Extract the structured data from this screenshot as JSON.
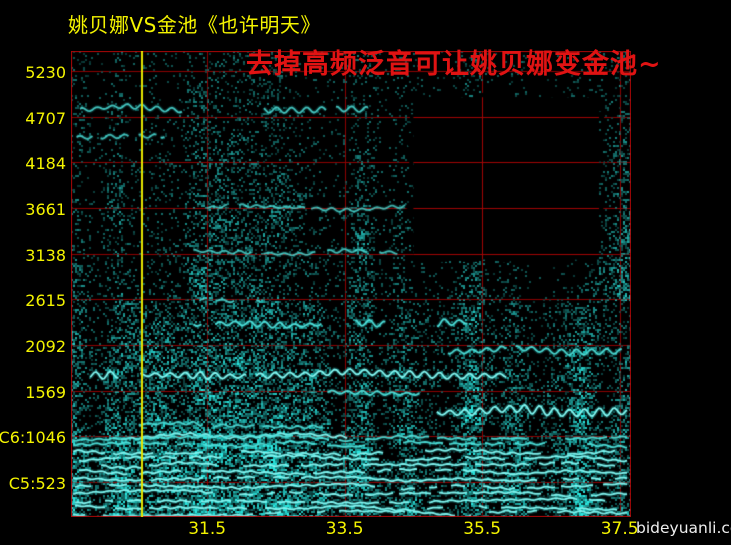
{
  "header": {
    "title": "姚贝娜VS金池《也许明天》",
    "title_color": "#f4f400",
    "annotation": "去掉高频泛音可让姚贝娜变金池~",
    "annotation_color": "#e01313"
  },
  "footer": {
    "watermark": "bideyuanli.com",
    "watermark_color": "#eeeeee"
  },
  "chart_data": {
    "type": "heatmap",
    "subtype": "audio-spectrogram",
    "title": "姚贝娜VS金池《也许明天》",
    "annotation": "去掉高频泛音可让姚贝娜变金池~",
    "x_unit": "seconds",
    "y_unit": "Hz",
    "x_range": [
      29.52,
      37.665
    ],
    "y_range": [
      120,
      5460
    ],
    "x_ticks": [
      {
        "label": "31.5",
        "value": 31.5
      },
      {
        "label": "33.5",
        "value": 33.5
      },
      {
        "label": "35.5",
        "value": 35.5
      },
      {
        "label": "37.5",
        "value": 37.5
      }
    ],
    "y_ticks": [
      {
        "label": "5230",
        "value": 5230
      },
      {
        "label": "4707",
        "value": 4707
      },
      {
        "label": "4184",
        "value": 4184
      },
      {
        "label": "3661",
        "value": 3661
      },
      {
        "label": "3138",
        "value": 3138
      },
      {
        "label": "2615",
        "value": 2615
      },
      {
        "label": "2092",
        "value": 2092
      },
      {
        "label": "1569",
        "value": 1569
      },
      {
        "label": "C6:1046",
        "value": 1046
      },
      {
        "label": "C5:523",
        "value": 523
      }
    ],
    "grid": true,
    "tick_color": "#f4f400",
    "grid_color": "#8f0303",
    "grid_color_in_erased": "#a30505",
    "border_color": "#ad0707",
    "cursor_time": 30.55,
    "cursor_color": "#e6e600",
    "erased_region": {
      "t0": 34.5,
      "t1": 37.2,
      "f0": 3070,
      "f1": 4930
    },
    "palette": {
      "background": "#000000",
      "speckle_teal": "#00d8cf",
      "band_bright": "#6ef0e8"
    },
    "bands": [
      {
        "f": 4800,
        "t0": 29.65,
        "t1": 33.95,
        "amp": 3.0,
        "bright": 0.55
      },
      {
        "f": 4500,
        "t0": 29.6,
        "t1": 30.9,
        "amp": 2.0,
        "bright": 0.45
      },
      {
        "f": 3660,
        "t0": 31.5,
        "t1": 34.4,
        "amp": 2.0,
        "bright": 0.4
      },
      {
        "f": 3140,
        "t0": 31.3,
        "t1": 34.3,
        "amp": 2.0,
        "bright": 0.45
      },
      {
        "f": 2620,
        "t0": 31.4,
        "t1": 32.3,
        "amp": 2.0,
        "bright": 0.5
      },
      {
        "f": 2320,
        "t0": 31.3,
        "t1": 35.3,
        "amp": 4.0,
        "bright": 0.8
      },
      {
        "f": 2030,
        "t0": 35.0,
        "t1": 37.55,
        "amp": 3.5,
        "bright": 0.7
      },
      {
        "f": 1760,
        "t0": 29.8,
        "t1": 35.9,
        "amp": 4.0,
        "bright": 0.9
      },
      {
        "f": 1560,
        "t0": 33.25,
        "t1": 34.6,
        "amp": 3.0,
        "bright": 0.75
      },
      {
        "f": 1330,
        "t0": 34.55,
        "t1": 37.62,
        "amp": 5.0,
        "bright": 1.0
      },
      {
        "f": 1180,
        "t0": 30.3,
        "t1": 33.2,
        "amp": 2.0,
        "bright": 0.6
      },
      {
        "f": 1046,
        "t0": 30.25,
        "t1": 33.55,
        "amp": 1.5,
        "bright": 0.85
      },
      {
        "f": 1020,
        "t0": 29.55,
        "t1": 37.62,
        "amp": 1.0,
        "bright": 0.7
      },
      {
        "f": 950,
        "t0": 29.55,
        "t1": 37.62,
        "amp": 1.0,
        "bright": 0.75
      },
      {
        "f": 870,
        "t0": 29.55,
        "t1": 37.62,
        "amp": 1.0,
        "bright": 0.85
      },
      {
        "f": 790,
        "t0": 29.55,
        "t1": 37.62,
        "amp": 1.0,
        "bright": 0.9
      },
      {
        "f": 710,
        "t0": 29.55,
        "t1": 37.62,
        "amp": 1.0,
        "bright": 0.85
      },
      {
        "f": 630,
        "t0": 29.55,
        "t1": 37.62,
        "amp": 1.0,
        "bright": 0.9
      },
      {
        "f": 550,
        "t0": 29.55,
        "t1": 37.62,
        "amp": 1.0,
        "bright": 0.95
      },
      {
        "f": 470,
        "t0": 29.55,
        "t1": 37.62,
        "amp": 1.0,
        "bright": 0.9
      },
      {
        "f": 390,
        "t0": 29.55,
        "t1": 37.62,
        "amp": 1.0,
        "bright": 0.85
      },
      {
        "f": 310,
        "t0": 29.55,
        "t1": 37.62,
        "amp": 1.0,
        "bright": 0.9
      },
      {
        "f": 230,
        "t0": 29.55,
        "t1": 37.62,
        "amp": 1.0,
        "bright": 0.95
      },
      {
        "f": 160,
        "t0": 29.55,
        "t1": 37.62,
        "amp": 1.0,
        "bright": 0.85
      }
    ]
  }
}
